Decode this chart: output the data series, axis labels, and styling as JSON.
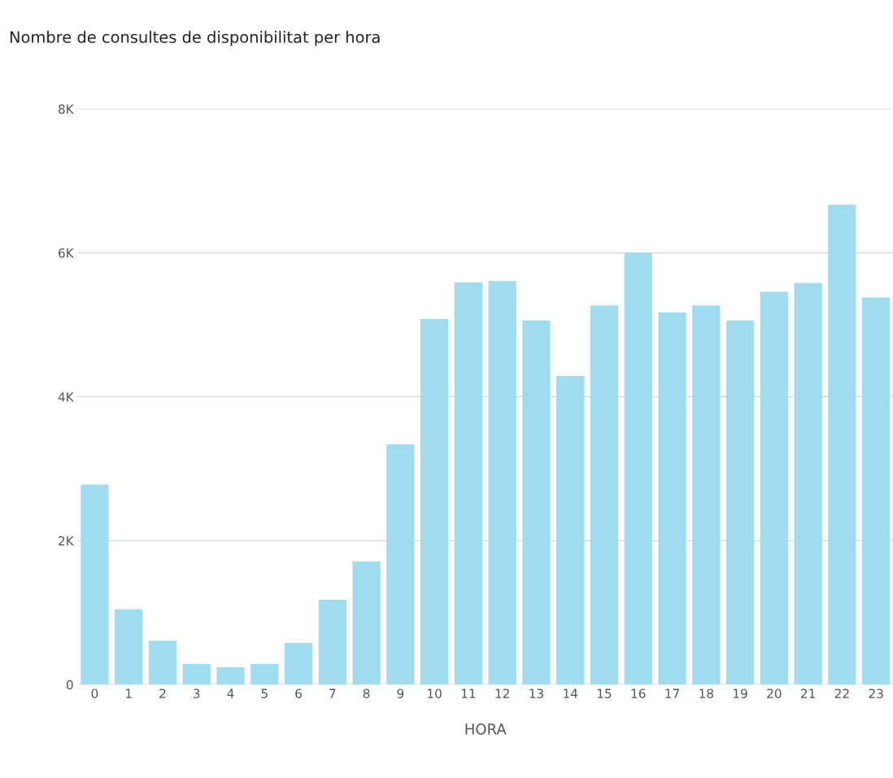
{
  "chart_data": {
    "type": "bar",
    "title": "Nombre de consultes de disponibilitat per hora",
    "xlabel": "HORA",
    "categories": [
      "0",
      "1",
      "2",
      "3",
      "4",
      "5",
      "6",
      "7",
      "8",
      "9",
      "10",
      "11",
      "12",
      "13",
      "14",
      "15",
      "16",
      "17",
      "18",
      "19",
      "20",
      "21",
      "22",
      "23"
    ],
    "values": [
      2780,
      1050,
      610,
      290,
      240,
      290,
      580,
      1180,
      1710,
      3340,
      5080,
      5590,
      5610,
      5060,
      4290,
      5270,
      6000,
      5170,
      5270,
      5060,
      5460,
      5580,
      6670,
      5380
    ],
    "color": "#a0dcef",
    "ylim": [
      0,
      8000
    ],
    "yticks": [
      0,
      {
        "value": 2000,
        "label": "2K"
      },
      {
        "value": 4000,
        "label": "4K"
      },
      {
        "value": 6000,
        "label": "6K"
      },
      {
        "value": 8000,
        "label": "8K"
      }
    ],
    "grid": "y"
  }
}
